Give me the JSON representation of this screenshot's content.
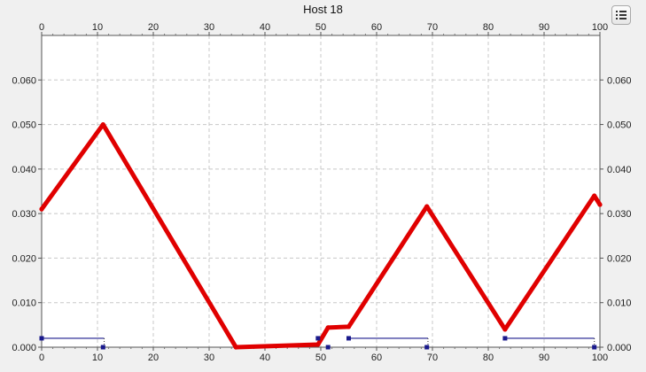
{
  "window": {
    "title": "Host 18"
  },
  "legend_button": {
    "icon": "legend-list-icon"
  },
  "colors": {
    "series": "#e00000",
    "marker": "#1a1a8c",
    "grid": "#c8c8c8",
    "plot_bg": "#ffffff",
    "page_bg": "#f0f0f0"
  },
  "chart_data": {
    "type": "line",
    "title": "Host 18",
    "xlabel": "",
    "ylabel": "",
    "xlim": [
      0,
      100
    ],
    "ylim": [
      0,
      0.07
    ],
    "x_ticks": [
      0,
      10,
      20,
      30,
      40,
      50,
      60,
      70,
      80,
      90,
      100
    ],
    "x_tick_labels": [
      "0",
      "10",
      "20",
      "30",
      "40",
      "50",
      "60",
      "70",
      "80",
      "90",
      "100"
    ],
    "y_ticks": [
      0,
      0.01,
      0.02,
      0.03,
      0.04,
      0.05,
      0.06
    ],
    "y_tick_labels": [
      "0.000",
      "0.010",
      "0.020",
      "0.030",
      "0.040",
      "0.050",
      "0.060"
    ],
    "grid": true,
    "series": [
      {
        "values_x": [
          0,
          11,
          34.8,
          49.5,
          51.3,
          55,
          69,
          83,
          99,
          100
        ],
        "values_y": [
          0.031,
          0.05,
          0.0,
          0.0006,
          0.0044,
          0.0046,
          0.0316,
          0.004,
          0.034,
          0.032
        ]
      }
    ],
    "intervals": [
      {
        "start": 0,
        "end": 11.2,
        "y": 0.002
      },
      {
        "start": 55,
        "end": 69.2,
        "y": 0.002
      },
      {
        "start": 83,
        "end": 99,
        "y": 0.002
      }
    ],
    "markers": [
      {
        "x": 0,
        "y": 0.002
      },
      {
        "x": 49.5,
        "y": 0.002
      },
      {
        "x": 55,
        "y": 0.002
      },
      {
        "x": 83,
        "y": 0.002
      },
      {
        "x": 11,
        "y": 0.0
      },
      {
        "x": 51.3,
        "y": 0.0
      },
      {
        "x": 69,
        "y": 0.0
      },
      {
        "x": 99,
        "y": 0.0
      }
    ]
  }
}
